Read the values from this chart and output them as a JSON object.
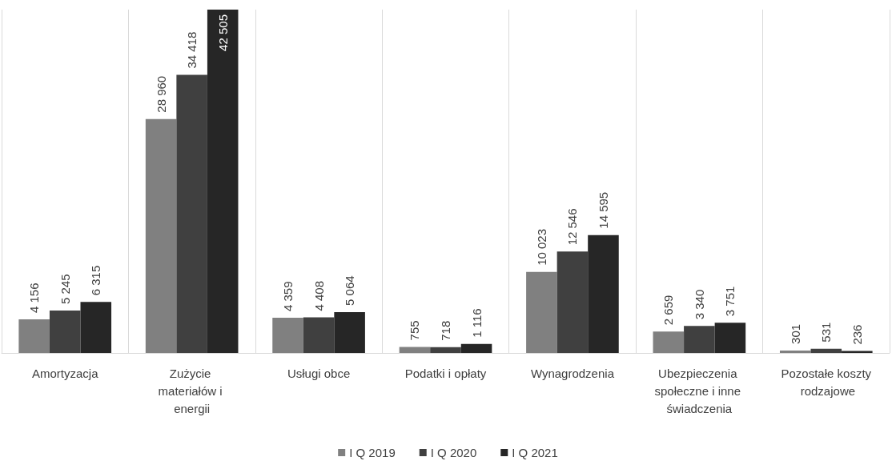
{
  "chart_data": {
    "type": "bar",
    "categories": [
      "Amortyzacja",
      "Zużycie materiałów i energii",
      "Usługi obce",
      "Podatki i opłaty",
      "Wynagrodzenia",
      "Ubezpieczenia społeczne i inne świadczenia",
      "Pozostałe koszty rodzajowe"
    ],
    "series": [
      {
        "name": "I Q 2019",
        "color": "#808080",
        "values": [
          4156,
          28960,
          4359,
          755,
          10023,
          2659,
          301
        ],
        "value_labels": [
          "4 156",
          "28 960",
          "4 359",
          "755",
          "10 023",
          "2 659",
          "301"
        ]
      },
      {
        "name": "I Q 2020",
        "color": "#404040",
        "values": [
          5245,
          34418,
          4408,
          718,
          12546,
          3340,
          531
        ],
        "value_labels": [
          "5 245",
          "34 418",
          "4 408",
          "718",
          "12 546",
          "3 340",
          "531"
        ]
      },
      {
        "name": "I Q 2021",
        "color": "#262626",
        "values": [
          6315,
          42505,
          5064,
          1116,
          14595,
          3751,
          236
        ],
        "value_labels": [
          "6 315",
          "42 505",
          "5 064",
          "1 116",
          "14 595",
          "3 751",
          "236"
        ]
      }
    ],
    "grid": "x",
    "legend": "bottom"
  }
}
